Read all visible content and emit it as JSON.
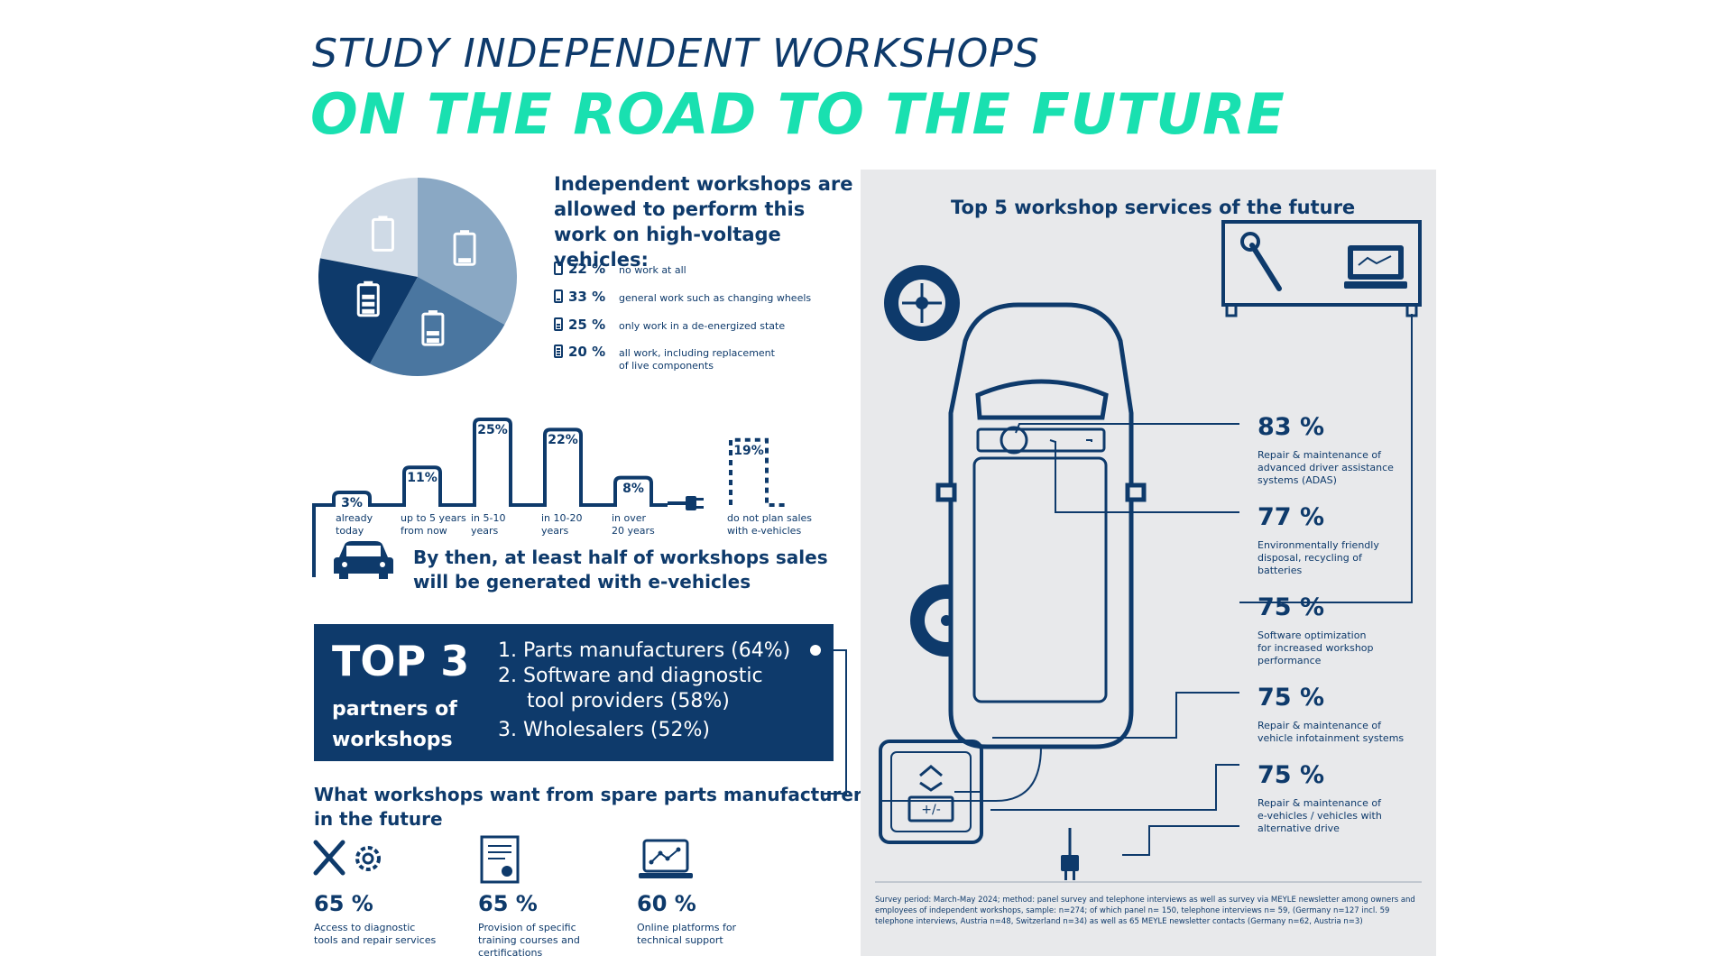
{
  "header": {
    "title_line1": "STUDY INDEPENDENT WORKSHOPS",
    "title_line2": "ON THE ROAD TO THE FUTURE"
  },
  "colors": {
    "navy": "#0e3a6b",
    "accent": "#19e0b0",
    "blue_mid": "#4a76a0",
    "blue_light": "#8aa8c4",
    "blue_pale": "#cfdae6",
    "panel": "#e8e9eb"
  },
  "hv_work": {
    "title": "Independent workshops are allowed to perform this work on high-voltage vehicles:",
    "icons": [
      "battery-empty-icon",
      "battery-low-icon",
      "battery-half-icon",
      "battery-full-icon"
    ]
  },
  "chart_data": [
    {
      "type": "pie",
      "categories": [
        "no work at all",
        "general work such as changing wheels",
        "only work in a de-energized state",
        "all work, including replacement of live components"
      ],
      "values": [
        22,
        33,
        25,
        20
      ],
      "pct_labels": [
        "22 %",
        "33 %",
        "25 %",
        "20 %"
      ],
      "legend_placement": "right"
    },
    {
      "type": "bar",
      "categories": [
        "already today",
        "up to 5 years from now",
        "in 5-10 years",
        "in 10-20 years",
        "in over 20 years",
        "do not plan sales with e-vehicles"
      ],
      "values": [
        3,
        11,
        25,
        22,
        8,
        19
      ],
      "pct_labels": [
        "3%",
        "11%",
        "25%",
        "22%",
        "8%",
        "19%"
      ],
      "note": "By then, at least half of workshops sales will be generated with e-vehicles"
    },
    {
      "type": "bar",
      "categories": [
        "Access to diagnostic tools and repair services",
        "Provision of specific training courses and certifications",
        "Online platforms for technical support"
      ],
      "values": [
        65,
        65,
        60
      ],
      "pct_labels": [
        "65 %",
        "65 %",
        "60 %"
      ],
      "title": "What workshops want from spare parts manufacturers in the future"
    },
    {
      "type": "bar",
      "categories": [
        "Repair & maintenance of advanced driver assistance systems (ADAS)",
        "Environmentally friendly disposal, recycling of batteries",
        "Software optimization for increased workshop performance",
        "Repair & maintenance of vehicle infotainment systems",
        "Repair & maintenance of e-vehicles / vehicles with alternative drive"
      ],
      "values": [
        83,
        77,
        75,
        75,
        75
      ],
      "pct_labels": [
        "83 %",
        "77 %",
        "75 %",
        "75 %",
        "75 %"
      ],
      "title": "Top 5 workshop services of the future"
    }
  ],
  "stairs_labels": [
    [
      "already",
      "today"
    ],
    [
      "up to 5 years",
      "from now"
    ],
    [
      "in 5-10",
      "years"
    ],
    [
      "in 10-20",
      "years"
    ],
    [
      "in over",
      "20 years"
    ],
    [
      "do not plan sales",
      "with e-vehicles"
    ]
  ],
  "hv_legend_lines": [
    [
      "no work at all"
    ],
    [
      "general work such as changing wheels"
    ],
    [
      "only work in a de-energized state"
    ],
    [
      "all work, including replacement",
      "of live components"
    ]
  ],
  "top3": {
    "big": "TOP 3",
    "sub_line1": "partners of",
    "sub_line2": "workshops",
    "items": [
      "1. Parts manufacturers (64%)",
      "2. Software and diagnostic",
      "tool providers (58%)",
      "3. Wholesalers (52%)"
    ]
  },
  "want": {
    "title_line1": "What workshops want from spare parts manufacturers",
    "title_line2": "in the future",
    "labels": [
      [
        "Access to diagnostic",
        "tools and repair services"
      ],
      [
        "Provision of specific",
        "training courses and",
        "certifications"
      ],
      [
        "Online platforms for",
        "technical support"
      ]
    ],
    "icons": [
      "tools-gear-icon",
      "certificate-icon",
      "laptop-chart-icon"
    ]
  },
  "services": {
    "labels": [
      [
        "Repair & maintenance of",
        "advanced driver assistance",
        "systems (ADAS)"
      ],
      [
        "Environmentally friendly",
        "disposal, recycling of",
        "batteries"
      ],
      [
        "Software optimization",
        "for increased workshop",
        "performance"
      ],
      [
        "Repair & maintenance of",
        "vehicle infotainment systems"
      ],
      [
        "Repair & maintenance of",
        "e-vehicles / vehicles with",
        "alternative drive"
      ]
    ],
    "icons": [
      "wheel-icon",
      "wrench-icon",
      "laptop-diagnostic-icon",
      "recycle-battery-icon",
      "plug-icon",
      "car-top-view-icon"
    ]
  },
  "footnote": "Survey period: March-May 2024; method: panel survey and telephone interviews as well as survey via MEYLE newsletter among owners and employees of independent workshops, sample: n=274; of which panel n= 150, telephone interviews n= 59, (Germany n=127 incl. 59 telephone interviews, Austria n=48, Switzerland n=34) as well as 65 MEYLE newsletter contacts (Germany n=62, Austria n=3)"
}
